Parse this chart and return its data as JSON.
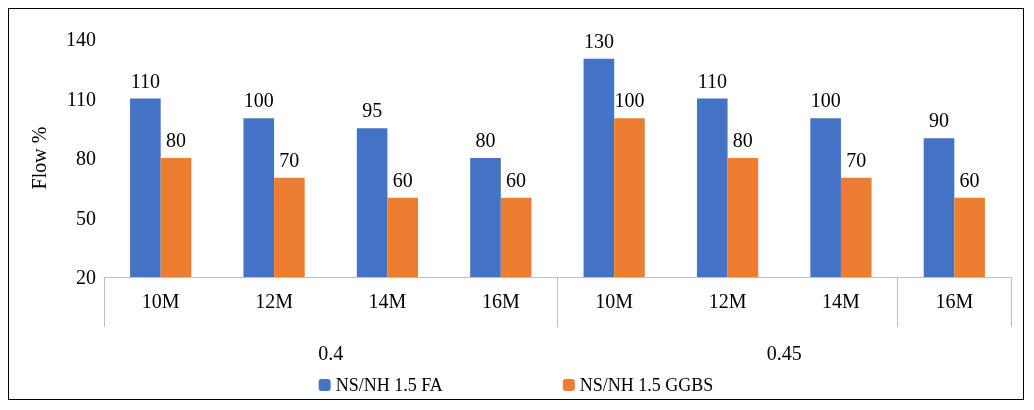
{
  "chart_data": {
    "type": "bar",
    "ylabel": "Flow %",
    "categories": [
      "10M",
      "12M",
      "14M",
      "16M",
      "10M",
      "12M",
      "14M",
      "16M"
    ],
    "annotations": [
      "0.4",
      "0.45"
    ],
    "series": [
      {
        "name": "NS/NH 1.5 FA",
        "color": "#4472c4",
        "values": [
          110,
          100,
          95,
          80,
          130,
          110,
          100,
          90
        ]
      },
      {
        "name": "NS/NH 1.5 GGBS",
        "color": "#ed7d31",
        "values": [
          80,
          70,
          60,
          60,
          100,
          80,
          70,
          60
        ]
      }
    ],
    "ylim": [
      20,
      140
    ],
    "yticks": [
      20,
      50,
      80,
      110,
      140
    ],
    "data_labels": true,
    "grid": false,
    "legend": "bottom"
  }
}
